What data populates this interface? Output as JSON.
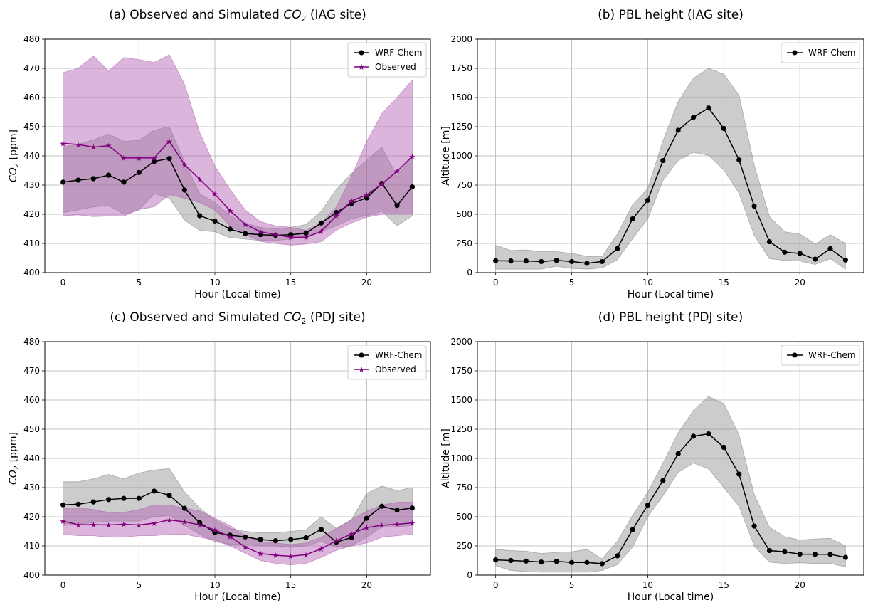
{
  "colors": {
    "wrf": "#000000",
    "obs": "#800080",
    "wrf_band": "#808080",
    "obs_band": "#b05cb0"
  },
  "legend": {
    "wrf": "WRF-Chem",
    "obs": "Observed"
  },
  "chart_data": [
    {
      "id": "a",
      "type": "line",
      "title_prefix": "(a) Observed and Simulated ",
      "title_var": "CO",
      "title_sub": "2",
      "title_suffix": " (IAG site)",
      "xlabel": "Hour (Local time)",
      "ylabel_var": "CO",
      "ylabel_sub": "2",
      "ylabel_suffix": " [ppm]",
      "xlim": [
        -1.2,
        24.2
      ],
      "ylim": [
        400,
        480
      ],
      "xticks": [
        "0",
        "5",
        "10",
        "15",
        "20"
      ],
      "yticks": [
        "400",
        "410",
        "420",
        "430",
        "440",
        "450",
        "460",
        "470",
        "480"
      ],
      "x": [
        0,
        1,
        2,
        3,
        4,
        5,
        6,
        7,
        8,
        9,
        10,
        11,
        12,
        13,
        14,
        15,
        16,
        17,
        18,
        19,
        20,
        21,
        22,
        23
      ],
      "series": [
        {
          "name": "WRF-Chem",
          "key": "wrf",
          "values": [
            431,
            431.7,
            432.2,
            433.4,
            431,
            434.3,
            438.1,
            439.1,
            428.3,
            419.5,
            417.7,
            414.9,
            413.4,
            413,
            412.8,
            413,
            413.5,
            417,
            420.6,
            423.7,
            425.6,
            430.6,
            423,
            429.4
          ],
          "upper": [
            443,
            444,
            445.5,
            447.5,
            445,
            445.3,
            448.8,
            450,
            438,
            427,
            424,
            419.5,
            417,
            415.5,
            415,
            415.5,
            416.5,
            421,
            428.5,
            434,
            438.5,
            443,
            433,
            440
          ],
          "lower": [
            420.5,
            421.5,
            422.5,
            423,
            420,
            421.5,
            427,
            425.5,
            418,
            414.5,
            414,
            412,
            411.5,
            411,
            411,
            411.5,
            412.5,
            414,
            416,
            418.5,
            419.5,
            421,
            416,
            419.5
          ]
        },
        {
          "name": "Observed",
          "key": "obs",
          "values": [
            444.3,
            443.9,
            443,
            443.5,
            439.3,
            439.3,
            439.3,
            445,
            437,
            432,
            426.9,
            421.2,
            416.6,
            414,
            413,
            412.1,
            412.1,
            414.1,
            419.5,
            424.6,
            426.6,
            430.4,
            434.7,
            439.8
          ],
          "upper": [
            468.5,
            470,
            474.3,
            469,
            473.7,
            473,
            472,
            474.7,
            464.5,
            448,
            436.5,
            428.5,
            421.5,
            417.5,
            416,
            415.5,
            414.5,
            417,
            422.5,
            433,
            445,
            454.5,
            460,
            466
          ],
          "lower": [
            419.5,
            419.8,
            419.2,
            419.4,
            419.4,
            421.6,
            422.6,
            426.7,
            425.5,
            424,
            421.5,
            416,
            413,
            410.7,
            410,
            409.4,
            409.8,
            410.6,
            414.5,
            417,
            419,
            420,
            420,
            420
          ]
        }
      ]
    },
    {
      "id": "b",
      "type": "line",
      "title_prefix": "(b) PBL height (IAG site)",
      "title_var": "",
      "title_sub": "",
      "title_suffix": "",
      "xlabel": "Hour (Local time)",
      "ylabel": "Altitude [m]",
      "xlim": [
        -1.2,
        24.2
      ],
      "ylim": [
        0,
        2000
      ],
      "xticks": [
        "0",
        "5",
        "10",
        "15",
        "20"
      ],
      "yticks": [
        "0",
        "250",
        "500",
        "750",
        "1000",
        "1250",
        "1500",
        "1750",
        "2000"
      ],
      "x": [
        0,
        1,
        2,
        3,
        4,
        5,
        6,
        7,
        8,
        9,
        10,
        11,
        12,
        13,
        14,
        15,
        16,
        17,
        18,
        19,
        20,
        21,
        22,
        23
      ],
      "series": [
        {
          "name": "WRF-Chem",
          "key": "wrf",
          "values": [
            102,
            100,
            100,
            95,
            105,
            95,
            80,
            95,
            205,
            460,
            620,
            960,
            1220,
            1330,
            1410,
            1235,
            965,
            570,
            265,
            175,
            165,
            115,
            205,
            108
          ],
          "upper": [
            235,
            190,
            195,
            180,
            180,
            165,
            140,
            140,
            330,
            580,
            720,
            1130,
            1465,
            1665,
            1750,
            1700,
            1520,
            920,
            480,
            350,
            330,
            245,
            325,
            250
          ],
          "lower": [
            30,
            30,
            30,
            30,
            55,
            35,
            30,
            40,
            110,
            290,
            460,
            790,
            960,
            1030,
            1005,
            880,
            680,
            320,
            120,
            105,
            100,
            70,
            120,
            30
          ]
        }
      ]
    },
    {
      "id": "c",
      "type": "line",
      "title_prefix": "(c) Observed and Simulated ",
      "title_var": "CO",
      "title_sub": "2",
      "title_suffix": " (PDJ site)",
      "xlabel": "Hour (Local time)",
      "ylabel_var": "CO",
      "ylabel_sub": "2",
      "ylabel_suffix": " [ppm]",
      "xlim": [
        -1.2,
        24.2
      ],
      "ylim": [
        400,
        480
      ],
      "xticks": [
        "0",
        "5",
        "10",
        "15",
        "20"
      ],
      "yticks": [
        "400",
        "410",
        "420",
        "430",
        "440",
        "450",
        "460",
        "470",
        "480"
      ],
      "x": [
        0,
        1,
        2,
        3,
        4,
        5,
        6,
        7,
        8,
        9,
        10,
        11,
        12,
        13,
        14,
        15,
        16,
        17,
        18,
        19,
        20,
        21,
        22,
        23
      ],
      "series": [
        {
          "name": "WRF-Chem",
          "key": "wrf",
          "values": [
            424.1,
            424.3,
            425.1,
            425.9,
            426.3,
            426.3,
            428.8,
            427.4,
            422.9,
            418,
            414.6,
            413.7,
            413.1,
            412.2,
            411.8,
            412.2,
            412.8,
            415.7,
            411.3,
            412.9,
            419.5,
            423.6,
            422.3,
            423
          ],
          "upper": [
            432,
            432,
            433,
            434.5,
            433,
            435,
            436,
            436.5,
            428.5,
            423,
            419,
            416,
            415,
            414.5,
            414.5,
            415,
            415.5,
            420,
            416,
            419,
            428,
            430.5,
            429,
            430
          ],
          "lower": [
            417,
            417.5,
            418,
            418.5,
            418.5,
            418.5,
            420,
            420.5,
            417,
            414,
            411.5,
            410.5,
            410.5,
            410,
            410,
            409.5,
            410,
            411.5,
            409.5,
            410,
            413,
            416.5,
            416.5,
            417
          ]
        },
        {
          "name": "Observed",
          "key": "obs",
          "values": [
            418.5,
            417.3,
            417.3,
            417.2,
            417.4,
            417.2,
            417.8,
            418.9,
            418.3,
            417.2,
            415.5,
            413.2,
            409.6,
            407.4,
            406.8,
            406.5,
            407,
            409,
            411.8,
            414.1,
            416.3,
            417.1,
            417.4,
            417.9
          ],
          "upper": [
            423,
            423,
            422.5,
            421.5,
            421.5,
            422.5,
            424,
            424,
            423,
            422,
            419.5,
            417,
            413.5,
            411.5,
            411,
            410.5,
            411,
            413,
            416,
            419,
            422,
            424,
            425,
            425
          ],
          "lower": [
            414,
            413.5,
            413.5,
            413,
            413,
            413.5,
            413.5,
            414,
            414,
            413,
            412,
            410,
            407.5,
            405,
            404,
            403.5,
            404,
            406,
            408.5,
            410,
            411,
            413,
            413.5,
            414
          ]
        }
      ]
    },
    {
      "id": "d",
      "type": "line",
      "title_prefix": "(d) PBL height (PDJ site)",
      "title_var": "",
      "title_sub": "",
      "title_suffix": "",
      "xlabel": "Hour (Local time)",
      "ylabel": "Altitude [m]",
      "xlim": [
        -1.2,
        24.2
      ],
      "ylim": [
        0,
        2000
      ],
      "xticks": [
        "0",
        "5",
        "10",
        "15",
        "20"
      ],
      "yticks": [
        "0",
        "250",
        "500",
        "750",
        "1000",
        "1250",
        "1500",
        "1750",
        "2000"
      ],
      "x": [
        0,
        1,
        2,
        3,
        4,
        5,
        6,
        7,
        8,
        9,
        10,
        11,
        12,
        13,
        14,
        15,
        16,
        17,
        18,
        19,
        20,
        21,
        22,
        23
      ],
      "series": [
        {
          "name": "WRF-Chem",
          "key": "wrf",
          "values": [
            130,
            125,
            120,
            112,
            118,
            108,
            108,
            98,
            165,
            390,
            600,
            810,
            1040,
            1190,
            1210,
            1095,
            865,
            420,
            210,
            200,
            180,
            178,
            178,
            152
          ],
          "upper": [
            220,
            210,
            205,
            185,
            195,
            200,
            220,
            140,
            290,
            510,
            710,
            960,
            1220,
            1410,
            1530,
            1470,
            1200,
            690,
            410,
            330,
            300,
            310,
            315,
            250
          ],
          "lower": [
            80,
            40,
            30,
            25,
            25,
            25,
            25,
            40,
            90,
            240,
            500,
            680,
            880,
            960,
            910,
            750,
            590,
            250,
            110,
            100,
            105,
            100,
            100,
            70
          ]
        }
      ]
    }
  ]
}
